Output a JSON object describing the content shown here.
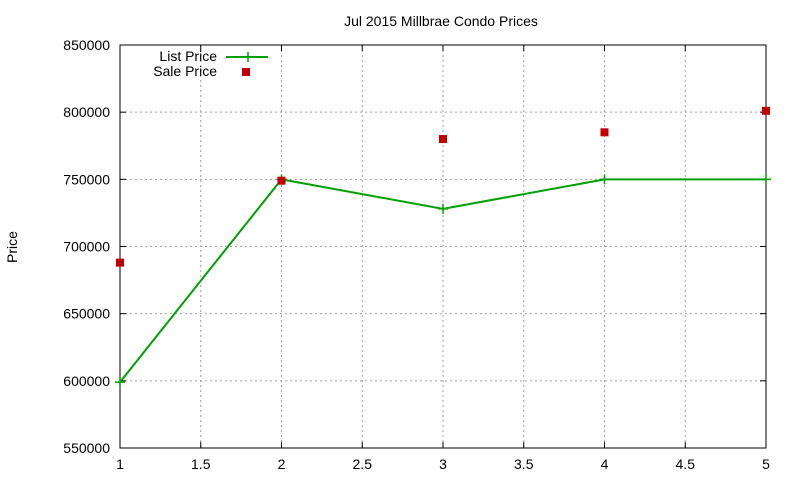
{
  "chart_data": {
    "type": "line",
    "title": "Jul 2015 Millbrae Condo Prices",
    "xlabel": "",
    "ylabel": "Price",
    "xlim": [
      1,
      5
    ],
    "ylim": [
      550000,
      850000
    ],
    "x_ticks": [
      1,
      1.5,
      2,
      2.5,
      3,
      3.5,
      4,
      4.5,
      5
    ],
    "x_tick_labels": [
      "1",
      "1.5",
      "2",
      "2.5",
      "3",
      "3.5",
      "4",
      "4.5",
      "5"
    ],
    "y_ticks": [
      550000,
      600000,
      650000,
      700000,
      750000,
      800000,
      850000
    ],
    "y_tick_labels": [
      "550000",
      "600000",
      "650000",
      "700000",
      "750000",
      "800000",
      "850000"
    ],
    "grid": true,
    "legend_position": "top-left",
    "series": [
      {
        "name": "List Price",
        "style": "line with plus markers",
        "color": "#00a000",
        "x": [
          1,
          2,
          3,
          4,
          5
        ],
        "values": [
          599000,
          750000,
          728000,
          750000,
          750000
        ]
      },
      {
        "name": "Sale Price",
        "style": "square markers",
        "color": "#c00000",
        "x": [
          1,
          2,
          3,
          4,
          5
        ],
        "values": [
          688000,
          749000,
          780000,
          785000,
          801000
        ]
      }
    ]
  }
}
